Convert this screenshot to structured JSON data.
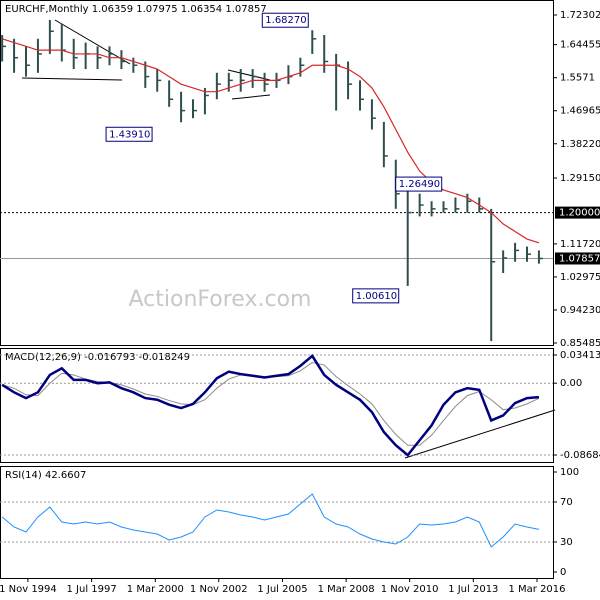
{
  "chart_data": [
    {
      "type": "ohlc",
      "title": "EURCHF,Monthly  1.06359 1.07975 1.06354 1.07857",
      "watermark": "ActionForex.com",
      "x": [
        1993.75,
        1994.25,
        1994.75,
        1995.25,
        1995.75,
        1996.25,
        1996.75,
        1997.25,
        1997.75,
        1998.25,
        1998.75,
        1999.25,
        1999.75,
        2000.25,
        2000.75,
        2001.25,
        2001.75,
        2002.25,
        2002.75,
        2003.25,
        2003.75,
        2004.25,
        2004.75,
        2005.25,
        2005.75,
        2006.25,
        2006.75,
        2007.25,
        2007.75,
        2008.25,
        2008.75,
        2009.25,
        2009.75,
        2010.25,
        2010.75,
        2011.25,
        2011.75,
        2012.25,
        2012.75,
        2013.25,
        2013.75,
        2014.25,
        2014.75,
        2015.25,
        2015.75,
        2016.25
      ],
      "high": [
        1.67,
        1.66,
        1.64,
        1.66,
        1.71,
        1.7,
        1.66,
        1.65,
        1.64,
        1.64,
        1.63,
        1.61,
        1.6,
        1.58,
        1.55,
        1.52,
        1.5,
        1.53,
        1.57,
        1.57,
        1.58,
        1.58,
        1.57,
        1.57,
        1.59,
        1.61,
        1.6827,
        1.67,
        1.62,
        1.6,
        1.55,
        1.5,
        1.44,
        1.34,
        1.2649,
        1.25,
        1.23,
        1.23,
        1.24,
        1.25,
        1.24,
        1.21,
        1.1,
        1.12,
        1.11,
        1.1
      ],
      "low": [
        1.6,
        1.57,
        1.56,
        1.57,
        1.62,
        1.6,
        1.58,
        1.58,
        1.58,
        1.59,
        1.58,
        1.57,
        1.53,
        1.52,
        1.48,
        1.4391,
        1.45,
        1.46,
        1.5,
        1.52,
        1.52,
        1.53,
        1.52,
        1.53,
        1.54,
        1.56,
        1.62,
        1.57,
        1.47,
        1.5,
        1.47,
        1.42,
        1.32,
        1.21,
        1.0061,
        1.19,
        1.19,
        1.2,
        1.2,
        1.2,
        1.2,
        0.86,
        1.04,
        1.07,
        1.07,
        1.065
      ],
      "close": [
        1.64,
        1.61,
        1.59,
        1.62,
        1.68,
        1.63,
        1.61,
        1.62,
        1.61,
        1.62,
        1.6,
        1.59,
        1.56,
        1.55,
        1.5,
        1.47,
        1.47,
        1.51,
        1.54,
        1.55,
        1.55,
        1.56,
        1.54,
        1.55,
        1.56,
        1.59,
        1.66,
        1.6,
        1.59,
        1.54,
        1.5,
        1.45,
        1.35,
        1.25,
        1.2,
        1.22,
        1.21,
        1.21,
        1.21,
        1.23,
        1.21,
        1.07,
        1.08,
        1.1,
        1.09,
        1.07857
      ],
      "ma": [
        1.66,
        1.65,
        1.64,
        1.63,
        1.63,
        1.63,
        1.62,
        1.62,
        1.62,
        1.61,
        1.61,
        1.6,
        1.59,
        1.58,
        1.56,
        1.54,
        1.53,
        1.52,
        1.52,
        1.53,
        1.54,
        1.55,
        1.55,
        1.55,
        1.56,
        1.57,
        1.59,
        1.59,
        1.59,
        1.58,
        1.56,
        1.53,
        1.48,
        1.42,
        1.36,
        1.31,
        1.28,
        1.26,
        1.25,
        1.24,
        1.22,
        1.2,
        1.17,
        1.15,
        1.13,
        1.12
      ],
      "bar_color": "#2f4f4f",
      "ma_color": "#d62728",
      "xlim": [
        1993.66,
        2016.84
      ],
      "ylim": [
        0.8496,
        1.7627
      ],
      "yticks": [
        1.72302,
        1.64455,
        1.5571,
        1.46965,
        {
          "value": 1.3822,
          "label": "1.38220"
        },
        {
          "value": 1.2915,
          "label": "1.29150"
        },
        {
          "value": 1.1172,
          "label": "1.11720"
        },
        1.02975,
        {
          "value": 0.9423,
          "label": "0.94230"
        },
        0.85485
      ],
      "hlines": [
        {
          "value": 1.2,
          "label": "1.20000",
          "style": "dotted"
        },
        {
          "value": 1.07857,
          "label": "1.07857",
          "style": "solid"
        }
      ],
      "annotations": [
        {
          "label": "1.68270",
          "x": 2006.75,
          "y": 1.6827
        },
        {
          "label": "1.43910",
          "x": 2001.25,
          "y": 1.4391
        },
        {
          "label": "1.26490",
          "x": 2010.75,
          "y": 1.2649
        },
        {
          "label": "1.00610",
          "x": 2010.75,
          "y": 1.0061
        }
      ]
    },
    {
      "type": "line",
      "title": "MACD(12,26,9) -0.016793 -0.018249",
      "x": [
        1993.75,
        1994.25,
        1994.75,
        1995.25,
        1995.75,
        1996.25,
        1996.75,
        1997.25,
        1997.75,
        1998.25,
        1998.75,
        1999.25,
        1999.75,
        2000.25,
        2000.75,
        2001.25,
        2001.75,
        2002.25,
        2002.75,
        2003.25,
        2003.75,
        2004.25,
        2004.75,
        2005.25,
        2005.75,
        2006.25,
        2006.75,
        2007.25,
        2007.75,
        2008.25,
        2008.75,
        2009.25,
        2009.75,
        2010.25,
        2010.75,
        2011.25,
        2011.75,
        2012.25,
        2012.75,
        2013.25,
        2013.75,
        2014.25,
        2014.75,
        2015.25,
        2015.75,
        2016.25
      ],
      "series": [
        {
          "color": "#8c8c8c",
          "values": [
            -0.002,
            -0.006,
            -0.014,
            -0.015,
            0.0,
            0.012,
            0.01,
            0.005,
            0.002,
            0.001,
            -0.002,
            -0.007,
            -0.013,
            -0.016,
            -0.021,
            -0.025,
            -0.026,
            -0.02,
            -0.006,
            0.005,
            0.01,
            0.01,
            0.008,
            0.008,
            0.009,
            0.015,
            0.025,
            0.022,
            0.008,
            -0.003,
            -0.013,
            -0.025,
            -0.045,
            -0.062,
            -0.075,
            -0.075,
            -0.063,
            -0.045,
            -0.028,
            -0.015,
            -0.01,
            -0.02,
            -0.032,
            -0.03,
            -0.025,
            -0.018249
          ]
        },
        {
          "color": "#000080",
          "values": [
            -0.002,
            -0.011,
            -0.018,
            -0.011,
            0.01,
            0.018,
            0.004,
            0.004,
            0.0,
            0.001,
            -0.006,
            -0.011,
            -0.018,
            -0.02,
            -0.026,
            -0.03,
            -0.025,
            -0.011,
            0.006,
            0.014,
            0.011,
            0.009,
            0.007,
            0.009,
            0.011,
            0.021,
            0.033,
            0.01,
            -0.002,
            -0.011,
            -0.02,
            -0.035,
            -0.059,
            -0.075,
            -0.087,
            -0.069,
            -0.051,
            -0.026,
            -0.011,
            -0.006,
            -0.008,
            -0.045,
            -0.039,
            -0.024,
            -0.018,
            -0.016793
          ]
        }
      ],
      "xlim": [
        1993.66,
        2016.84
      ],
      "ylim": [
        -0.0965,
        0.0426
      ],
      "yticks": [
        0.034137,
        {
          "value": 0,
          "label": "0.00"
        },
        -0.086849
      ]
    },
    {
      "type": "line",
      "title": "RSI(14) 42.6607",
      "x": [
        1993.75,
        1994.25,
        1994.75,
        1995.25,
        1995.75,
        1996.25,
        1996.75,
        1997.25,
        1997.75,
        1998.25,
        1998.75,
        1999.25,
        1999.75,
        2000.25,
        2000.75,
        2001.25,
        2001.75,
        2002.25,
        2002.75,
        2003.25,
        2003.75,
        2004.25,
        2004.75,
        2005.25,
        2005.75,
        2006.25,
        2006.75,
        2007.25,
        2007.75,
        2008.25,
        2008.75,
        2009.25,
        2009.75,
        2010.25,
        2010.75,
        2011.25,
        2011.75,
        2012.25,
        2012.75,
        2013.25,
        2013.75,
        2014.25,
        2014.75,
        2015.25,
        2015.75,
        2016.25
      ],
      "series": [
        {
          "color": "#1e90ff",
          "values": [
            55,
            45,
            40,
            55,
            65,
            50,
            48,
            50,
            48,
            50,
            45,
            42,
            40,
            38,
            32,
            35,
            40,
            55,
            62,
            60,
            57,
            55,
            52,
            55,
            58,
            68,
            78,
            55,
            48,
            45,
            38,
            33,
            30,
            28,
            35,
            48,
            47,
            48,
            50,
            55,
            50,
            25,
            35,
            48,
            45,
            42.6607
          ]
        }
      ],
      "xlim": [
        1993.66,
        2016.84
      ],
      "ylim": [
        -6,
        106
      ],
      "yticks": [
        100,
        70,
        30,
        0
      ],
      "xticks": [
        {
          "value": 1994.83,
          "label": "1 Nov 1994"
        },
        {
          "value": 1997.5,
          "label": "1 Jul 1997"
        },
        {
          "value": 2000.17,
          "label": "1 Mar 2000"
        },
        {
          "value": 2002.83,
          "label": "1 Nov 2002"
        },
        {
          "value": 2005.5,
          "label": "1 Jul 2005"
        },
        {
          "value": 2008.17,
          "label": "1 Mar 2008"
        },
        {
          "value": 2010.83,
          "label": "1 Nov 2010"
        },
        {
          "value": 2013.5,
          "label": "1 Jul 2013"
        },
        {
          "value": 2016.17,
          "label": "1 Mar 2016"
        }
      ]
    }
  ]
}
